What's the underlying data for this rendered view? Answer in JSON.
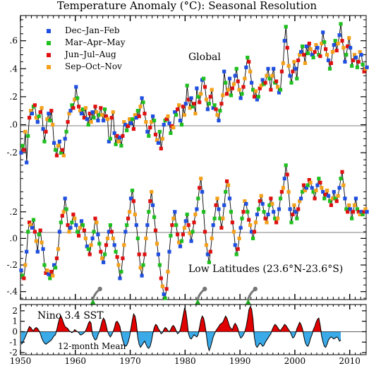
{
  "chart_data": [
    {
      "type": "line",
      "title": "Temperature Anomaly (°C): Seasonal Resolution",
      "ylabel": "",
      "xlim": [
        1950,
        2013
      ],
      "legend": {
        "placement": "top-left",
        "entries": [
          {
            "label": "Dec–Jan–Feb",
            "color": "#1f4fe0"
          },
          {
            "label": "Mar–Apr–May",
            "color": "#1fbf1f"
          },
          {
            "label": "Jun–Jul–Aug",
            "color": "#e01010"
          },
          {
            "label": "Sep–Oct–Nov",
            "color": "#f5a01a"
          }
        ]
      },
      "panels": [
        {
          "name": "Global",
          "annotation": "Global",
          "ylim": [
            -0.28,
            0.78
          ],
          "ytick_labels": [
            ".6",
            ".4",
            ".2",
            ".0",
            "-.2"
          ],
          "ytick_values": [
            0.6,
            0.4,
            0.2,
            0.0,
            -0.2
          ],
          "series": {
            "start_year": 1950.0,
            "step": 0.25,
            "season_order": [
              "Dec–Jan–Feb",
              "Mar–Apr–May",
              "Jun–Jul–Aug",
              "Sep–Oct–Nov"
            ],
            "values": [
              -0.2,
              -0.15,
              -0.18,
              -0.05,
              -0.27,
              -0.08,
              0.05,
              0.1,
              0.08,
              0.13,
              0.14,
              0.05,
              0.02,
              0.06,
              0.09,
              0.12,
              -0.03,
              -0.12,
              -0.05,
              0.04,
              0.08,
              0.03,
              0.1,
              0.0,
              -0.13,
              -0.18,
              -0.22,
              -0.15,
              -0.12,
              -0.2,
              -0.18,
              -0.22,
              -0.1,
              -0.05,
              0.02,
              0.08,
              0.1,
              0.14,
              0.12,
              0.18,
              0.27,
              0.19,
              0.13,
              0.1,
              0.08,
              0.11,
              0.05,
              0.12,
              0.04,
              0.0,
              0.08,
              0.02,
              0.09,
              0.05,
              0.13,
              0.09,
              0.03,
              0.07,
              0.12,
              0.07,
              0.03,
              0.11,
              0.06,
              0.04,
              -0.12,
              -0.1,
              0.05,
              0.09,
              -0.06,
              -0.14,
              -0.08,
              -0.12,
              -0.09,
              -0.15,
              -0.08,
              0.02,
              0.0,
              -0.04,
              -0.01,
              0.04,
              0.01,
              0.04,
              -0.03,
              0.07,
              0.05,
              0.1,
              0.06,
              0.13,
              0.19,
              0.16,
              0.08,
              0.02,
              -0.05,
              -0.08,
              -0.02,
              0.02,
              0.06,
              0.03,
              -0.07,
              -0.11,
              -0.13,
              -0.05,
              -0.17,
              -0.1,
              0.0,
              0.03,
              0.04,
              0.06,
              0.01,
              -0.06,
              -0.01,
              -0.02,
              0.09,
              0.07,
              0.11,
              0.14,
              0.03,
              0.0,
              0.13,
              0.07,
              0.15,
              0.28,
              0.18,
              0.12,
              0.19,
              0.13,
              0.15,
              0.08,
              0.26,
              0.2,
              0.16,
              0.22,
              0.32,
              0.33,
              0.27,
              0.18,
              0.11,
              0.15,
              0.2,
              0.25,
              0.12,
              0.14,
              0.11,
              0.07,
              0.03,
              0.1,
              0.15,
              0.21,
              0.38,
              0.3,
              0.22,
              0.25,
              0.33,
              0.21,
              0.26,
              0.29,
              0.35,
              0.4,
              0.31,
              0.25,
              0.19,
              0.22,
              0.27,
              0.33,
              0.41,
              0.48,
              0.45,
              0.38,
              0.3,
              0.25,
              0.2,
              0.24,
              0.18,
              0.2,
              0.26,
              0.28,
              0.32,
              0.29,
              0.3,
              0.35,
              0.4,
              0.33,
              0.25,
              0.35,
              0.4,
              0.3,
              0.31,
              0.27,
              0.23,
              0.25,
              0.38,
              0.44,
              0.6,
              0.7,
              0.55,
              0.42,
              0.35,
              0.3,
              0.38,
              0.45,
              0.4,
              0.33,
              0.46,
              0.5,
              0.52,
              0.56,
              0.5,
              0.44,
              0.56,
              0.51,
              0.58,
              0.54,
              0.5,
              0.48,
              0.52,
              0.57,
              0.55,
              0.5,
              0.49,
              0.58,
              0.66,
              0.59,
              0.54,
              0.5,
              0.46,
              0.4,
              0.44,
              0.52,
              0.57,
              0.6,
              0.53,
              0.58,
              0.64,
              0.72,
              0.6,
              0.55,
              0.45,
              0.5,
              0.56,
              0.62,
              0.55,
              0.42,
              0.46,
              0.5,
              0.48,
              0.41,
              0.45,
              0.52,
              0.5,
              0.43,
              0.38,
              0.4,
              0.41
            ]
          }
        },
        {
          "name": "Low Latitudes",
          "annotation": "Low Latitudes (23.6°N-23.6°S)",
          "ylim": [
            -0.46,
            0.56
          ],
          "ytick_labels": [
            ".2",
            ".0",
            "-.2",
            "-.4"
          ],
          "ytick_values": [
            0.2,
            0.0,
            -0.2,
            -0.4
          ],
          "series": {
            "start_year": 1950.0,
            "step": 0.25,
            "season_order": [
              "Dec–Jan–Feb",
              "Mar–Apr–May",
              "Jun–Jul–Aug",
              "Sep–Oct–Nov"
            ],
            "values": [
              -0.24,
              -0.28,
              -0.3,
              -0.2,
              -0.1,
              0.05,
              0.12,
              0.1,
              0.08,
              0.14,
              0.05,
              -0.02,
              -0.1,
              0.03,
              0.06,
              -0.03,
              -0.08,
              -0.2,
              -0.26,
              -0.24,
              -0.27,
              -0.3,
              -0.25,
              -0.28,
              -0.2,
              -0.22,
              -0.15,
              -0.08,
              0.05,
              0.12,
              0.17,
              0.2,
              0.3,
              0.22,
              0.1,
              0.05,
              0.08,
              0.12,
              0.18,
              0.15,
              0.1,
              0.05,
              0.02,
              0.08,
              0.13,
              0.1,
              0.06,
              0.0,
              -0.06,
              -0.08,
              -0.12,
              -0.05,
              0.0,
              0.05,
              0.15,
              0.12,
              0.03,
              -0.04,
              -0.1,
              -0.15,
              -0.18,
              -0.12,
              -0.05,
              0.0,
              0.05,
              0.1,
              0.05,
              0.0,
              -0.05,
              -0.1,
              -0.14,
              -0.2,
              -0.3,
              -0.25,
              -0.15,
              -0.05,
              0.05,
              0.1,
              0.15,
              0.2,
              0.3,
              0.36,
              0.28,
              0.18,
              0.1,
              0.0,
              -0.12,
              -0.22,
              -0.28,
              -0.2,
              -0.12,
              0.0,
              0.1,
              0.2,
              0.28,
              0.35,
              0.25,
              0.16,
              0.06,
              -0.04,
              -0.12,
              -0.2,
              -0.3,
              -0.36,
              -0.42,
              -0.45,
              -0.38,
              -0.25,
              -0.1,
              0.02,
              0.1,
              0.15,
              0.2,
              0.1,
              0.03,
              -0.03,
              -0.06,
              -0.02,
              0.03,
              0.08,
              0.13,
              0.18,
              0.1,
              0.04,
              -0.02,
              0.05,
              0.12,
              0.18,
              0.22,
              0.3,
              0.38,
              0.45,
              0.35,
              0.2,
              0.05,
              -0.05,
              -0.12,
              -0.18,
              -0.1,
              0.0,
              0.1,
              0.15,
              0.25,
              0.3,
              0.22,
              0.15,
              0.08,
              0.15,
              0.25,
              0.35,
              0.43,
              0.4,
              0.3,
              0.2,
              0.12,
              0.05,
              -0.05,
              -0.12,
              -0.08,
              0.0,
              0.08,
              0.15,
              0.2,
              0.28,
              0.26,
              0.2,
              0.14,
              0.1,
              0.05,
              0.0,
              0.05,
              0.12,
              0.18,
              0.22,
              0.28,
              0.32,
              0.26,
              0.2,
              0.15,
              0.12,
              0.18,
              0.25,
              0.3,
              0.26,
              0.2,
              0.15,
              0.12,
              0.15,
              0.22,
              0.3,
              0.35,
              0.38,
              0.45,
              0.55,
              0.48,
              0.35,
              0.22,
              0.12,
              0.18,
              0.25,
              0.2,
              0.15,
              0.22,
              0.28,
              0.3,
              0.35,
              0.4,
              0.36,
              0.38,
              0.4,
              0.44,
              0.42,
              0.38,
              0.35,
              0.3,
              0.36,
              0.4,
              0.45,
              0.42,
              0.38,
              0.35,
              0.3,
              0.33,
              0.36,
              0.32,
              0.28,
              0.25,
              0.3,
              0.35,
              0.3,
              0.28,
              0.32,
              0.38,
              0.45,
              0.5,
              0.4,
              0.3,
              0.22,
              0.2,
              0.25,
              0.22,
              0.15,
              0.2,
              0.25,
              0.3,
              0.22,
              0.2,
              0.18,
              0.2,
              0.18,
              0.2,
              0.22,
              0.2
            ]
          }
        }
      ],
      "volcano_markers": {
        "years": [
          1963.2,
          1982.3,
          1991.5
        ]
      }
    },
    {
      "type": "area",
      "title": "Nino 3.4 SST",
      "annotation": "12-month Mean",
      "xlim": [
        1950,
        2013
      ],
      "ylim": [
        -2.2,
        2.6
      ],
      "ytick_labels": [
        "2",
        "1",
        "0",
        "-1",
        "-2"
      ],
      "ytick_values": [
        2,
        1,
        0,
        -1,
        -2
      ],
      "xtick_labels": [
        "1950",
        "1960",
        "1970",
        "1980",
        "1990",
        "2000",
        "2010"
      ],
      "xtick_values": [
        1950,
        1960,
        1970,
        1980,
        1990,
        2000,
        2010
      ],
      "colors": {
        "positive": "#e00000",
        "negative": "#3aaae8"
      },
      "series": {
        "start_year": 1950.0,
        "step": 0.25,
        "values": [
          -1.2,
          -1.1,
          -0.8,
          -0.5,
          -0.2,
          0.2,
          0.5,
          0.4,
          0.2,
          0.1,
          0.3,
          0.4,
          0.3,
          0.1,
          -0.2,
          -0.6,
          -0.9,
          -1.1,
          -1.2,
          -1.1,
          -1.0,
          -0.9,
          -0.8,
          -0.6,
          -0.4,
          -0.3,
          0.2,
          0.8,
          1.3,
          1.5,
          1.2,
          0.8,
          0.5,
          0.4,
          0.3,
          0.1,
          0.0,
          -0.1,
          0.0,
          0.2,
          0.1,
          0.0,
          -0.1,
          -0.3,
          -0.3,
          -0.2,
          -0.1,
          0.1,
          0.4,
          0.8,
          1.0,
          0.8,
          -0.3,
          -0.6,
          -0.8,
          -0.7,
          -0.3,
          0.0,
          0.5,
          1.0,
          1.3,
          1.1,
          0.6,
          0.0,
          -0.3,
          -0.5,
          -0.3,
          0.0,
          0.4,
          0.9,
          1.0,
          0.8,
          0.5,
          -0.2,
          -0.8,
          -1.2,
          -1.4,
          -1.3,
          -1.0,
          -0.5,
          0.3,
          1.1,
          1.7,
          1.5,
          0.8,
          -0.6,
          -1.2,
          -1.5,
          -1.3,
          -1.1,
          -0.9,
          -1.2,
          -1.5,
          -1.6,
          -1.4,
          -0.9,
          -0.2,
          0.4,
          0.7,
          0.6,
          0.3,
          0.1,
          -0.2,
          -0.1,
          0.2,
          0.4,
          0.3,
          0.1,
          0.0,
          0.2,
          0.5,
          0.6,
          0.4,
          0.1,
          -0.2,
          -0.1,
          0.2,
          0.8,
          1.5,
          2.2,
          2.0,
          1.0,
          -0.2,
          -0.6,
          -0.7,
          -0.5,
          -0.3,
          -0.4,
          -0.5,
          -0.3,
          0.4,
          1.1,
          1.5,
          1.3,
          0.7,
          -0.3,
          -1.3,
          -1.8,
          -1.5,
          -1.0,
          -0.5,
          -0.2,
          0.1,
          0.3,
          0.5,
          0.7,
          0.8,
          0.9,
          1.2,
          1.5,
          1.3,
          0.9,
          0.5,
          0.3,
          0.2,
          0.6,
          0.8,
          0.6,
          0.3,
          -0.3,
          -0.6,
          -0.5,
          -0.3,
          0.0,
          0.5,
          1.2,
          2.1,
          2.4,
          2.2,
          1.2,
          -0.5,
          -1.3,
          -1.5,
          -1.3,
          -1.1,
          -1.2,
          -1.4,
          -1.3,
          -1.0,
          -0.8,
          -0.6,
          -0.4,
          -0.2,
          0.2,
          0.5,
          0.7,
          0.6,
          0.4,
          0.2,
          0.1,
          0.3,
          0.5,
          0.7,
          0.6,
          0.4,
          0.2,
          0.0,
          -0.3,
          -0.6,
          -0.5,
          -0.2,
          0.3,
          0.6,
          0.9,
          0.7,
          0.3,
          -0.4,
          -1.0,
          -1.3,
          -1.4,
          -1.1,
          -0.6,
          -0.3,
          0.2,
          0.5,
          0.9,
          1.2,
          1.3,
          0.6,
          -0.4,
          -1.0,
          -1.4,
          -1.5,
          -1.2,
          -0.8,
          -0.6,
          -0.5,
          -0.6,
          -0.7,
          -0.6,
          -0.5,
          -0.6,
          -0.9,
          -0.8
        ]
      }
    }
  ]
}
